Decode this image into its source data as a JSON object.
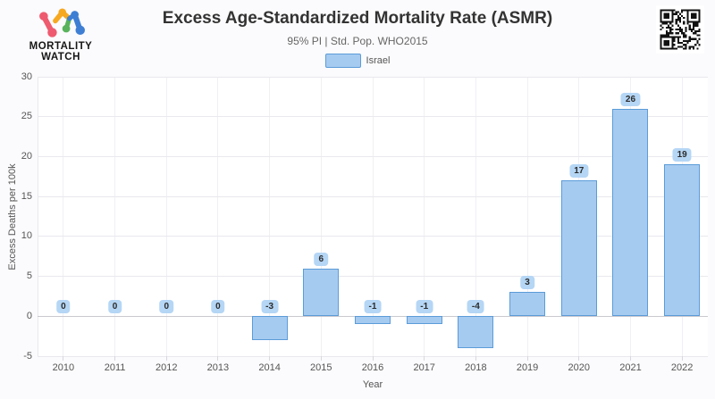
{
  "header": {
    "logo_line1": "MORTALITY",
    "logo_line2": "WATCH"
  },
  "chart_data": {
    "type": "bar",
    "title": "Excess Age-Standardized Mortality Rate (ASMR)",
    "subtitle": "95% PI | Std. Pop. WHO2015",
    "categories": [
      "2010",
      "2011",
      "2012",
      "2013",
      "2014",
      "2015",
      "2016",
      "2017",
      "2018",
      "2019",
      "2020",
      "2021",
      "2022"
    ],
    "series": [
      {
        "name": "Israel",
        "values": [
          0,
          0,
          0,
          0,
          -3,
          6,
          -1,
          -1,
          -4,
          3,
          17,
          26,
          19
        ]
      }
    ],
    "data_labels_shown": true,
    "xlabel": "Year",
    "ylabel": "Excess Deaths per 100k",
    "ylim": [
      -5,
      30
    ],
    "ytick_step": 5,
    "grid": true,
    "legend_position": "top-center",
    "colors": {
      "bar_fill": "#A6CBF0",
      "bar_border": "#5B9CD9",
      "label_badge_bg": "#B5D6F5",
      "label_text": "#2B2B2B",
      "grid_line": "#E9E9EE",
      "zero_line": "#C9C9CF",
      "axis_text": "#555555",
      "title_text": "#333333",
      "subtitle_text": "#666666",
      "logo_pink": "#EE5A6F",
      "logo_yellow": "#F6A821",
      "logo_green": "#58B35C",
      "logo_blue": "#3E7FD4"
    }
  }
}
